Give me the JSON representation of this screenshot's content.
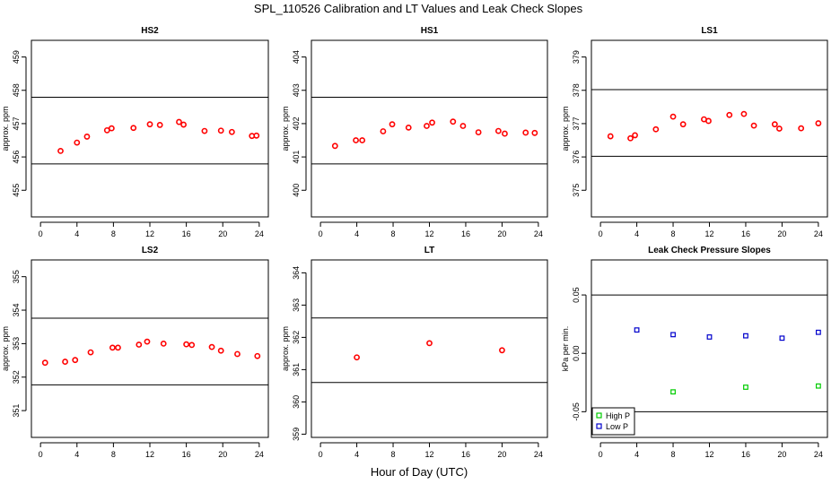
{
  "figure": {
    "title": "SPL_110526  Calibration and LT Values and Leak Check Slopes",
    "xlabel": "Hour of Day (UTC)"
  },
  "chart_data": [
    {
      "type": "scatter",
      "title": "HS2",
      "ylabel": "approx. ppm",
      "xlim": [
        -1,
        25
      ],
      "ylim": [
        454.2,
        459.5
      ],
      "xticks": [
        0,
        4,
        8,
        12,
        16,
        20,
        24
      ],
      "yticks": [
        455,
        456,
        457,
        458,
        459
      ],
      "hlines": [
        457.79,
        455.79
      ],
      "series": [
        {
          "color": "#ff0000",
          "marker": "circle",
          "x": [
            2.2,
            4.0,
            5.1,
            7.3,
            7.8,
            10.2,
            12.0,
            13.1,
            15.2,
            15.7,
            18.0,
            19.8,
            21.0,
            23.2,
            23.7
          ],
          "y": [
            456.18,
            456.43,
            456.61,
            456.8,
            456.86,
            456.87,
            456.98,
            456.96,
            457.05,
            456.97,
            456.78,
            456.79,
            456.75,
            456.63,
            456.64
          ]
        }
      ]
    },
    {
      "type": "scatter",
      "title": "HS1",
      "ylabel": "approx. ppm",
      "xlim": [
        -1,
        25
      ],
      "ylim": [
        399.2,
        404.5
      ],
      "xticks": [
        0,
        4,
        8,
        12,
        16,
        20,
        24
      ],
      "yticks": [
        400,
        401,
        402,
        403,
        404
      ],
      "hlines": [
        402.79,
        400.79
      ],
      "series": [
        {
          "color": "#ff0000",
          "marker": "circle",
          "x": [
            1.6,
            3.9,
            4.6,
            6.9,
            7.9,
            9.7,
            11.7,
            12.3,
            14.6,
            15.7,
            17.4,
            19.6,
            20.3,
            22.6,
            23.6
          ],
          "y": [
            401.33,
            401.5,
            401.5,
            401.77,
            401.98,
            401.88,
            401.93,
            402.03,
            402.06,
            401.93,
            401.74,
            401.78,
            401.7,
            401.73,
            401.72
          ]
        }
      ]
    },
    {
      "type": "scatter",
      "title": "LS1",
      "ylabel": "approx. ppm",
      "xlim": [
        -1,
        25
      ],
      "ylim": [
        374.2,
        379.5
      ],
      "xticks": [
        0,
        4,
        8,
        12,
        16,
        20,
        24
      ],
      "yticks": [
        375,
        376,
        377,
        378,
        379
      ],
      "hlines": [
        378.02,
        376.02
      ],
      "series": [
        {
          "color": "#ff0000",
          "marker": "circle",
          "x": [
            1.1,
            3.3,
            3.8,
            6.1,
            8.0,
            9.1,
            11.4,
            11.9,
            14.2,
            15.8,
            16.9,
            19.2,
            19.7,
            22.1,
            24.0
          ],
          "y": [
            376.62,
            376.56,
            376.65,
            376.83,
            377.21,
            376.98,
            377.13,
            377.08,
            377.26,
            377.29,
            376.94,
            376.98,
            376.85,
            376.86,
            377.01
          ]
        }
      ]
    },
    {
      "type": "scatter",
      "title": "LS2",
      "ylabel": "approx. ppm",
      "xlim": [
        -1,
        25
      ],
      "ylim": [
        350.2,
        355.5
      ],
      "xticks": [
        0,
        4,
        8,
        12,
        16,
        20,
        24
      ],
      "yticks": [
        351,
        352,
        353,
        354,
        355
      ],
      "hlines": [
        353.76,
        351.77
      ],
      "series": [
        {
          "color": "#ff0000",
          "marker": "circle",
          "x": [
            0.5,
            2.7,
            3.8,
            5.5,
            7.9,
            8.5,
            10.8,
            11.7,
            13.5,
            16.0,
            16.6,
            18.8,
            19.8,
            21.6,
            23.8
          ],
          "y": [
            352.43,
            352.46,
            352.51,
            352.74,
            352.88,
            352.88,
            352.97,
            353.06,
            353.0,
            352.98,
            352.96,
            352.9,
            352.79,
            352.69,
            352.63
          ]
        }
      ]
    },
    {
      "type": "scatter",
      "title": "LT",
      "ylabel": "approx. ppm",
      "xlim": [
        -1,
        25
      ],
      "ylim": [
        358.9,
        364.4
      ],
      "xticks": [
        0,
        4,
        8,
        12,
        16,
        20,
        24
      ],
      "yticks": [
        359,
        360,
        361,
        362,
        363,
        364
      ],
      "hlines": [
        362.6,
        360.6
      ],
      "series": [
        {
          "color": "#ff0000",
          "marker": "circle",
          "x": [
            4.0,
            12.0,
            20.0
          ],
          "y": [
            361.38,
            361.82,
            361.6
          ]
        }
      ]
    },
    {
      "type": "scatter",
      "title": "Leak Check Pressure Slopes",
      "ylabel": "kPa per min.",
      "xlim": [
        -1,
        25
      ],
      "ylim": [
        -0.072,
        0.08
      ],
      "xticks": [
        0,
        4,
        8,
        12,
        16,
        20,
        24
      ],
      "yticks": [
        -0.05,
        0.0,
        0.05
      ],
      "ytick_labels": [
        "-0.05",
        "0.00",
        "0.05"
      ],
      "hlines": [
        0.05,
        -0.05
      ],
      "legend": "bottom-left",
      "series": [
        {
          "name": "High P",
          "color": "#00cc00",
          "marker": "square",
          "x": [
            8,
            16,
            24
          ],
          "y": [
            -0.033,
            -0.029,
            -0.028
          ]
        },
        {
          "name": "Low P",
          "color": "#0000cc",
          "marker": "square",
          "x": [
            4,
            8,
            12,
            16,
            20,
            24
          ],
          "y": [
            0.02,
            0.016,
            0.014,
            0.015,
            0.013,
            0.018
          ]
        }
      ]
    }
  ]
}
